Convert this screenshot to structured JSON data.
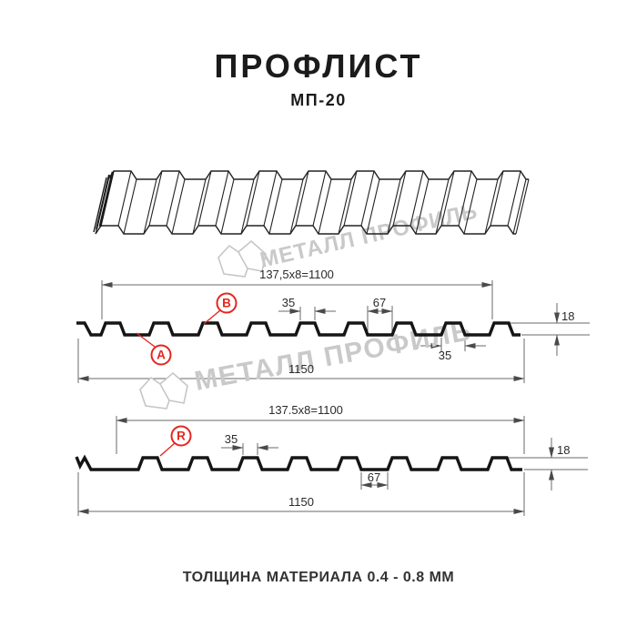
{
  "page": {
    "title": "ПРОФЛИСТ",
    "subtitle": "МП-20",
    "footer_note": "ТОЛЩИНА МАТЕРИАЛА 0.4 - 0.8 ММ"
  },
  "watermark": {
    "brand": "МЕТАЛЛ ПРОФИЛЬ",
    "logo_icon": "metall-profil-logo"
  },
  "colors": {
    "accent_red": "#e52620",
    "drawing_black": "#151515",
    "dim_line_gray": "#6a6a6a",
    "watermark_gray": "#c9c9c9"
  },
  "section_face": {
    "pitch_formula": "137,5x8=1100",
    "rib_top_width": "35",
    "valley_width": "67",
    "profile_height": "18",
    "rib_base_width": "35",
    "overall_width": "1150",
    "point_labels": {
      "a": "A",
      "b": "B"
    }
  },
  "section_reverse": {
    "pitch_formula": "137.5x8=1100",
    "rib_top_width": "35",
    "valley_width": "67",
    "profile_height": "18",
    "overall_width": "1150",
    "point_labels": {
      "r": "R"
    }
  }
}
